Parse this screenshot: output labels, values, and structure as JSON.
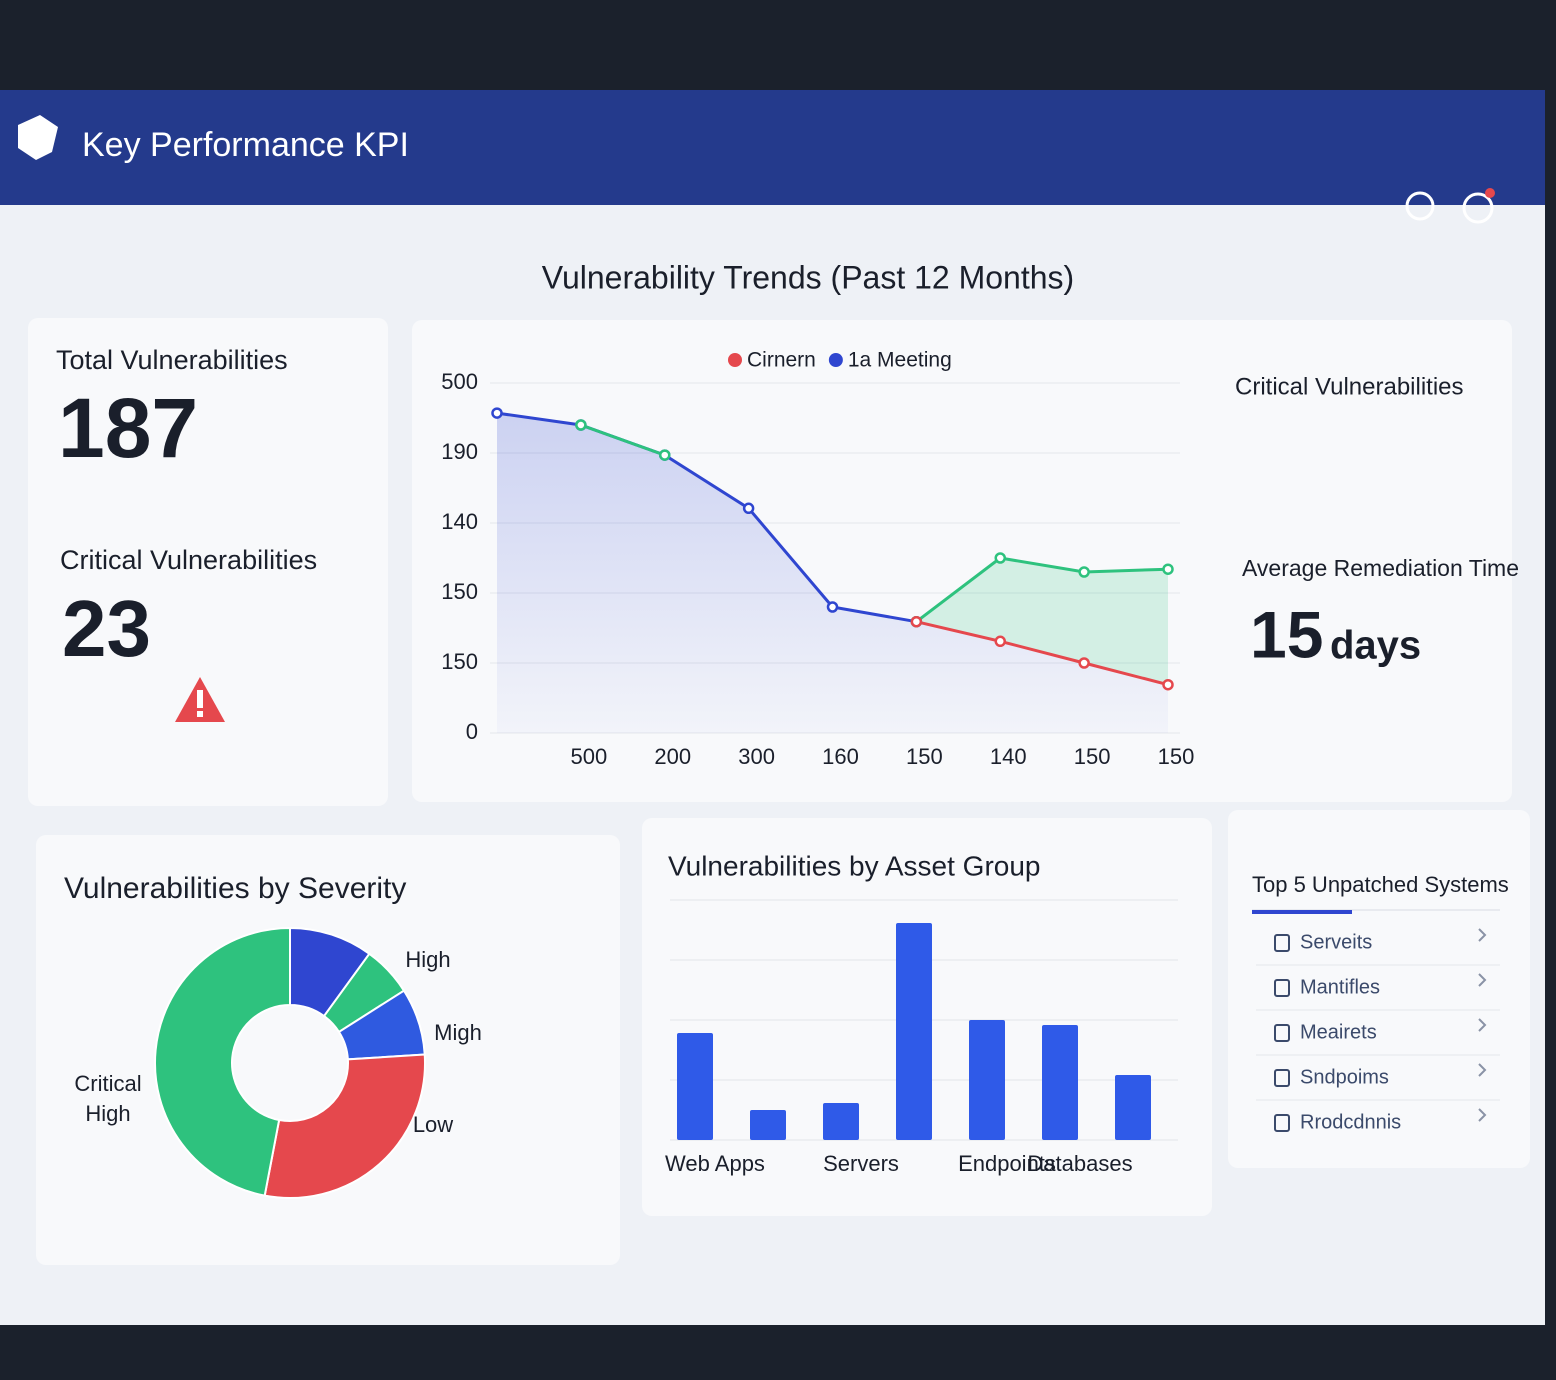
{
  "header": {
    "title": "Key Performance KPI"
  },
  "kpis": {
    "total": {
      "label": "Total Vulnerabilities",
      "value": "187"
    },
    "critical": {
      "label": "Critical Vulnerabilities",
      "value": "23"
    },
    "critical_right": {
      "label": "Critical Vulnerabilities"
    },
    "remediation": {
      "label": "Average Remediation Time",
      "value": "15",
      "unit": "days"
    }
  },
  "chart_data": [
    {
      "type": "line",
      "title": "Vulnerability Trends (Past 12 Months)",
      "categories": [
        null,
        "500",
        "200",
        "300",
        "160",
        "150",
        "140",
        "150",
        "150"
      ],
      "ylim": [
        0,
        500
      ],
      "yticks": [
        0,
        {
          "value": 100,
          "label": "150"
        },
        {
          "value": 200,
          "label": "150"
        },
        {
          "value": 300,
          "label": "140"
        },
        {
          "value": 400,
          "label": "190"
        },
        500
      ],
      "grid": true,
      "series": [
        {
          "name": "1a Meeting",
          "color": "#2f46d0",
          "values": [
            457,
            440,
            397,
            321,
            180,
            159,
            null,
            null,
            null
          ]
        },
        {
          "color": "#2ec27e",
          "values": [
            null,
            440,
            397,
            null,
            null,
            159,
            250,
            230,
            234
          ]
        },
        {
          "name": "Cirnern",
          "color": "#e5484d",
          "values": [
            null,
            null,
            null,
            null,
            null,
            159,
            131,
            100,
            69
          ]
        }
      ]
    },
    {
      "type": "donut",
      "title": "Vulnerabilities by Severity",
      "categories": [
        "High",
        null,
        "Migh",
        "Low",
        "Critical High"
      ],
      "values": [
        10,
        6,
        8,
        29,
        47
      ],
      "colors": [
        "#2f46d0",
        "#2ec27e",
        "#2f5ae0",
        "#e5484d",
        "#2ec27e"
      ]
    },
    {
      "type": "bar",
      "title": "Vulnerabilities by Asset Group",
      "categories": [
        "Web Apps",
        null,
        "Servers",
        null,
        "Endpoints",
        "Databases",
        null
      ],
      "values": [
        107,
        30,
        37,
        217,
        120,
        115,
        65
      ],
      "color": "#2f5ae8",
      "ylim": [
        0,
        250
      ]
    }
  ],
  "top_unpatched": {
    "title": "Top 5 Unpatched Systems",
    "items": [
      "Serveits",
      "Mantifles",
      "Meairets",
      "Sndpoims",
      "Rrodcdnnis"
    ]
  }
}
